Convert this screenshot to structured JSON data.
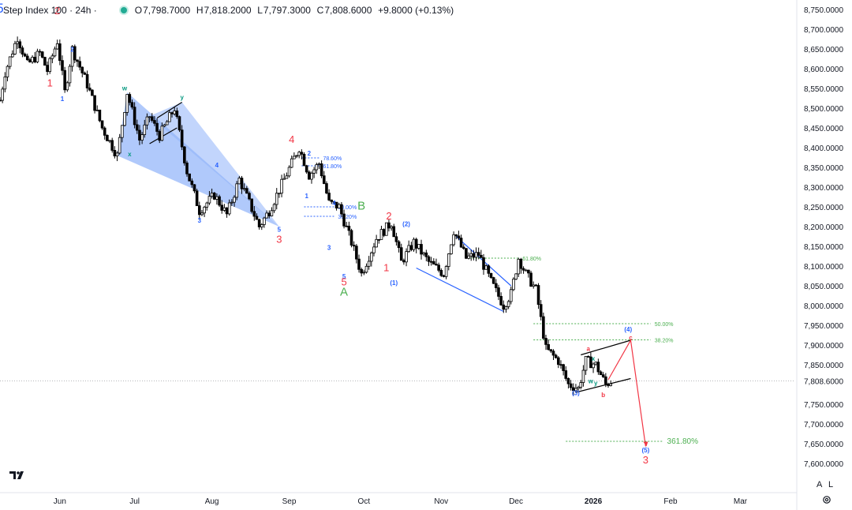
{
  "header": {
    "title": "Step Index 100 · 24h ·",
    "open_label": "O",
    "open": "7,798.7000",
    "high_label": "H",
    "high": "7,818.2000",
    "low_label": "L",
    "low": "7,797.3000",
    "close_label": "C",
    "close": "7,808.6000",
    "change": "+9.8000 (+0.13%)",
    "status_color": "#22ab94"
  },
  "controls": {
    "log_label": "A",
    "linear_label": "L",
    "settings_icon": "gear-icon"
  },
  "chart_data": {
    "type": "candlestick",
    "y_ticks": [
      8750,
      8700,
      8650,
      8600,
      8550,
      8500,
      8450,
      8400,
      8350,
      8300,
      8250,
      8200,
      8150,
      8100,
      8050,
      8000,
      7950,
      7900,
      7850,
      7750,
      7700,
      7650,
      7600
    ],
    "y_tick_labels": [
      "8,750.0000",
      "8,700.0000",
      "8,650.0000",
      "8,600.0000",
      "8,550.0000",
      "8,500.0000",
      "8,450.0000",
      "8,400.0000",
      "8,350.0000",
      "8,300.0000",
      "8,250.0000",
      "8,200.0000",
      "8,150.0000",
      "8,100.0000",
      "8,050.0000",
      "8,000.0000",
      "7,950.0000",
      "7,900.0000",
      "7,850.0000",
      "7,750.0000",
      "7,700.0000",
      "7,650.0000",
      "7,600.0000"
    ],
    "y_range": [
      7575,
      8765
    ],
    "current_price": 7808.6,
    "current_price_label": "7,808.6000",
    "x_labels": [
      "Jun",
      "Jul",
      "Aug",
      "Sep",
      "Oct",
      "Nov",
      "Dec",
      "2026",
      "Feb",
      "Mar"
    ],
    "x_label_dates": [
      "2025-06-01",
      "2025-07-01",
      "2025-08-01",
      "2025-09-01",
      "2025-10-01",
      "2025-11-01",
      "2025-12-01",
      "2026-01-01",
      "2026-02-01",
      "2026-03-01"
    ],
    "x_range": [
      "2025-05-08",
      "2026-03-23"
    ],
    "price_path": [
      [
        "2025-05-08",
        8520
      ],
      [
        "2025-05-10",
        8590
      ],
      [
        "2025-05-15",
        8680
      ],
      [
        "2025-05-19",
        8610
      ],
      [
        "2025-05-24",
        8640
      ],
      [
        "2025-05-27",
        8595
      ],
      [
        "2025-05-31",
        8670
      ],
      [
        "2025-06-03",
        8540
      ],
      [
        "2025-06-06",
        8650
      ],
      [
        "2025-06-12",
        8560
      ],
      [
        "2025-06-18",
        8450
      ],
      [
        "2025-06-24",
        8380
      ],
      [
        "2025-06-28",
        8540
      ],
      [
        "2025-07-03",
        8420
      ],
      [
        "2025-07-07",
        8480
      ],
      [
        "2025-07-11",
        8430
      ],
      [
        "2025-07-17",
        8500
      ],
      [
        "2025-07-22",
        8340
      ],
      [
        "2025-07-27",
        8240
      ],
      [
        "2025-08-02",
        8280
      ],
      [
        "2025-08-07",
        8230
      ],
      [
        "2025-08-12",
        8320
      ],
      [
        "2025-08-20",
        8200
      ],
      [
        "2025-08-24",
        8240
      ],
      [
        "2025-08-30",
        8320
      ],
      [
        "2025-09-05",
        8400
      ],
      [
        "2025-09-09",
        8330
      ],
      [
        "2025-09-13",
        8360
      ],
      [
        "2025-09-17",
        8260
      ],
      [
        "2025-09-21",
        8250
      ],
      [
        "2025-09-26",
        8160
      ],
      [
        "2025-09-30",
        8080
      ],
      [
        "2025-10-06",
        8170
      ],
      [
        "2025-10-12",
        8210
      ],
      [
        "2025-10-16",
        8110
      ],
      [
        "2025-10-21",
        8160
      ],
      [
        "2025-10-27",
        8110
      ],
      [
        "2025-11-02",
        8080
      ],
      [
        "2025-11-06",
        8190
      ],
      [
        "2025-11-11",
        8120
      ],
      [
        "2025-11-16",
        8130
      ],
      [
        "2025-11-21",
        8060
      ],
      [
        "2025-11-26",
        8000
      ],
      [
        "2025-11-29",
        8030
      ],
      [
        "2025-12-02",
        8120
      ],
      [
        "2025-12-05",
        8080
      ],
      [
        "2025-12-09",
        8040
      ],
      [
        "2025-12-13",
        7890
      ],
      [
        "2025-12-18",
        7860
      ],
      [
        "2025-12-22",
        7800
      ],
      [
        "2025-12-26",
        7790
      ],
      [
        "2025-12-29",
        7860
      ],
      [
        "2026-01-02",
        7850
      ],
      [
        "2026-01-06",
        7800
      ],
      [
        "2026-01-08",
        7808
      ]
    ],
    "wave_labels": [
      {
        "text": "5",
        "date": "2025-05-08",
        "price": 8742,
        "color": "#2962ff",
        "size": "big"
      },
      {
        "text": "2",
        "date": "2025-05-31",
        "price": 8738,
        "color": "#f23645",
        "size": "mid"
      },
      {
        "text": "1",
        "date": "2025-05-28",
        "price": 8555,
        "color": "#f23645",
        "size": "mid"
      },
      {
        "text": "2",
        "date": "2025-06-06",
        "price": 8643,
        "color": "#2962ff",
        "size": "small"
      },
      {
        "text": "1",
        "date": "2025-06-02",
        "price": 8518,
        "color": "#2962ff",
        "size": "small"
      },
      {
        "text": "w",
        "date": "2025-06-27",
        "price": 8545,
        "color": "#089981",
        "size": "small"
      },
      {
        "text": "y",
        "date": "2025-07-20",
        "price": 8522,
        "color": "#089981",
        "size": "small"
      },
      {
        "text": "x",
        "date": "2025-06-29",
        "price": 8378,
        "color": "#089981",
        "size": "small"
      },
      {
        "text": "4",
        "date": "2025-08-03",
        "price": 8350,
        "color": "#2962ff",
        "size": "small"
      },
      {
        "text": "3",
        "date": "2025-07-27",
        "price": 8210,
        "color": "#2962ff",
        "size": "small"
      },
      {
        "text": "5",
        "date": "2025-08-28",
        "price": 8187,
        "color": "#2962ff",
        "size": "small"
      },
      {
        "text": "3",
        "date": "2025-08-28",
        "price": 8159,
        "color": "#f23645",
        "size": "mid"
      },
      {
        "text": "4",
        "date": "2025-09-02",
        "price": 8412,
        "color": "#f23645",
        "size": "mid"
      },
      {
        "text": "2",
        "date": "2025-09-09",
        "price": 8380,
        "color": "#2962ff",
        "size": "small"
      },
      {
        "text": "1",
        "date": "2025-09-08",
        "price": 8272,
        "color": "#2962ff",
        "size": "small"
      },
      {
        "text": "4",
        "date": "2025-09-19",
        "price": 8254,
        "color": "#2962ff",
        "size": "small"
      },
      {
        "text": "3",
        "date": "2025-09-17",
        "price": 8141,
        "color": "#2962ff",
        "size": "small"
      },
      {
        "text": "5",
        "date": "2025-09-23",
        "price": 8068,
        "color": "#2962ff",
        "size": "small"
      },
      {
        "text": "5",
        "date": "2025-09-23",
        "price": 8051,
        "color": "#f23645",
        "size": "mid"
      },
      {
        "text": "A",
        "date": "2025-09-23",
        "price": 8025,
        "color": "#4caf50",
        "size": "mid-big"
      },
      {
        "text": "B",
        "date": "2025-09-30",
        "price": 8243,
        "color": "#4caf50",
        "size": "mid-big"
      },
      {
        "text": "2",
        "date": "2025-10-11",
        "price": 8218,
        "color": "#f23645",
        "size": "mid"
      },
      {
        "text": "1",
        "date": "2025-10-10",
        "price": 8087,
        "color": "#f23645",
        "size": "mid"
      },
      {
        "text": "(2)",
        "date": "2025-10-18",
        "price": 8201,
        "color": "#2962ff",
        "size": "small"
      },
      {
        "text": "(1)",
        "date": "2025-10-13",
        "price": 8052,
        "color": "#2962ff",
        "size": "small"
      },
      {
        "text": "(4)",
        "date": "2026-01-15",
        "price": 7934,
        "color": "#2962ff",
        "size": "small"
      },
      {
        "text": "a",
        "date": "2025-12-30",
        "price": 7885,
        "color": "#f23645",
        "size": "small"
      },
      {
        "text": "x",
        "date": "2026-01-01",
        "price": 7860,
        "color": "#089981",
        "size": "small"
      },
      {
        "text": "w",
        "date": "2025-12-31",
        "price": 7803,
        "color": "#089981",
        "size": "small"
      },
      {
        "text": "y",
        "date": "2026-01-02",
        "price": 7798,
        "color": "#089981",
        "size": "small"
      },
      {
        "text": "b",
        "date": "2026-01-05",
        "price": 7768,
        "color": "#f23645",
        "size": "small"
      },
      {
        "text": "c",
        "date": "2026-01-16",
        "price": 7913,
        "color": "#f23645",
        "size": "small"
      },
      {
        "text": "(3)",
        "date": "2025-12-25",
        "price": 7773,
        "color": "#2962ff",
        "size": "small"
      },
      {
        "text": "(5)",
        "date": "2026-01-22",
        "price": 7628,
        "color": "#2962ff",
        "size": "small"
      },
      {
        "text": "3",
        "date": "2026-01-22",
        "price": 7600,
        "color": "#f23645",
        "size": "mid"
      }
    ],
    "fib_levels": [
      {
        "text": "78.60%",
        "price": 8374,
        "date_from": "2025-09-06",
        "date_to": "2025-09-13",
        "color": "#2962ff"
      },
      {
        "text": "61.80%",
        "price": 8354,
        "date_from": "2025-09-06",
        "date_to": "2025-09-13",
        "color": "#2962ff"
      },
      {
        "text": "50.00%",
        "price": 8250,
        "date_from": "2025-09-07",
        "date_to": "2025-09-19",
        "color": "#2962ff"
      },
      {
        "text": "38.20%",
        "price": 8226,
        "date_from": "2025-09-07",
        "date_to": "2025-09-19",
        "color": "#2962ff"
      },
      {
        "text": "61.80%",
        "price": 8120,
        "date_from": "2025-11-11",
        "date_to": "2025-12-02",
        "color": "#4caf50"
      },
      {
        "text": "50.00%",
        "price": 7954,
        "date_from": "2025-12-08",
        "date_to": "2026-01-24",
        "color": "#4caf50"
      },
      {
        "text": "38.20%",
        "price": 7913,
        "date_from": "2025-12-08",
        "date_to": "2026-01-24",
        "color": "#4caf50"
      },
      {
        "text": "361.80%",
        "price": 7656,
        "date_from": "2025-12-21",
        "date_to": "2026-01-29",
        "color": "#4caf50",
        "big": true
      }
    ],
    "projection_path": [
      [
        "2026-01-07",
        7812
      ],
      [
        "2026-01-16",
        7912
      ],
      [
        "2026-01-22",
        7643
      ]
    ],
    "colors": {
      "bull": "#ffffff",
      "bear": "#000000",
      "up_wick": "#000000",
      "projection": "#f23645",
      "channel": "#2962ff",
      "triangle_fill": "#8fb2f9"
    }
  }
}
